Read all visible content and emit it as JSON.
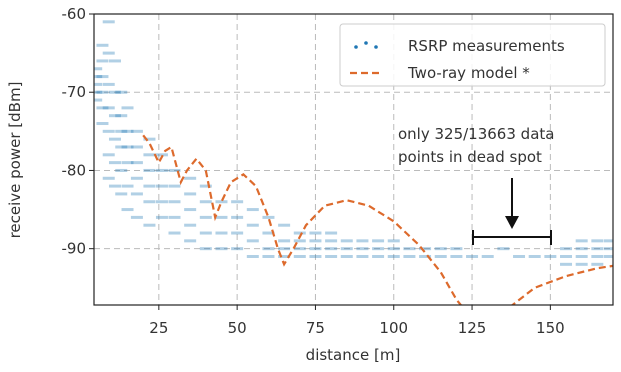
{
  "chart_data": {
    "type": "scatter",
    "xlabel": "distance [m]",
    "ylabel": "receive power [dBm]",
    "xlim": [
      4.3,
      170
    ],
    "ylim": [
      -97.2,
      -60
    ],
    "xticks": [
      25,
      50,
      75,
      100,
      125,
      150
    ],
    "yticks": [
      -60,
      -70,
      -80,
      -90
    ],
    "grid": true,
    "legend": "upper right",
    "annotation": [
      "only 325/13663 data",
      "points in dead spot"
    ],
    "series": [
      {
        "name": "RSRP measurements",
        "type": "scatter",
        "color": "#1f77b4",
        "x": [
          5,
          5,
          5,
          5,
          5,
          7,
          7,
          7,
          7,
          7,
          7,
          9,
          9,
          9,
          9,
          9,
          9,
          9,
          11,
          11,
          11,
          11,
          11,
          11,
          13,
          13,
          13,
          13,
          13,
          13,
          15,
          15,
          15,
          15,
          15,
          15,
          18,
          18,
          18,
          18,
          18,
          18,
          22,
          22,
          22,
          22,
          22,
          22,
          26,
          26,
          26,
          26,
          26,
          30,
          30,
          30,
          30,
          30,
          35,
          35,
          35,
          35,
          35,
          40,
          40,
          40,
          40,
          40,
          45,
          45,
          45,
          45,
          50,
          50,
          50,
          50,
          55,
          55,
          55,
          55,
          60,
          60,
          60,
          60,
          65,
          65,
          65,
          65,
          70,
          70,
          70,
          70,
          75,
          75,
          75,
          75,
          80,
          80,
          80,
          80,
          85,
          85,
          85,
          90,
          90,
          90,
          95,
          95,
          95,
          100,
          100,
          100,
          105,
          105,
          110,
          110,
          115,
          115,
          120,
          120,
          125,
          130,
          135,
          140,
          145,
          150,
          155,
          155,
          155,
          160,
          160,
          160,
          160,
          165,
          165,
          165,
          165,
          169,
          169,
          169
        ],
        "y": [
          -67,
          -68,
          -69,
          -70,
          -71,
          -64,
          -66,
          -68,
          -70,
          -72,
          -74,
          -61,
          -65,
          -69,
          -72,
          -75,
          -78,
          -81,
          -66,
          -70,
          -73,
          -76,
          -79,
          -82,
          -70,
          -73,
          -75,
          -77,
          -80,
          -83,
          -72,
          -75,
          -77,
          -79,
          -82,
          -85,
          -75,
          -77,
          -79,
          -81,
          -83,
          -86,
          -76,
          -78,
          -80,
          -82,
          -84,
          -87,
          -78,
          -80,
          -82,
          -84,
          -86,
          -80,
          -82,
          -84,
          -86,
          -88,
          -81,
          -83,
          -85,
          -87,
          -89,
          -82,
          -84,
          -86,
          -88,
          -90,
          -84,
          -86,
          -88,
          -90,
          -84,
          -86,
          -88,
          -90,
          -85,
          -87,
          -89,
          -91,
          -86,
          -88,
          -90,
          -91,
          -87,
          -89,
          -90,
          -91,
          -88,
          -89,
          -90,
          -91,
          -88,
          -89,
          -90,
          -91,
          -88,
          -89,
          -90,
          -91,
          -89,
          -90,
          -91,
          -89,
          -90,
          -91,
          -89,
          -90,
          -91,
          -89,
          -90,
          -91,
          -90,
          -91,
          -90,
          -91,
          -90,
          -91,
          -90,
          -91,
          -91,
          -91,
          -90,
          -91,
          -91,
          -91,
          -90,
          -91,
          -92,
          -89,
          -90,
          -91,
          -92,
          -89,
          -90,
          -91,
          -92,
          -89,
          -90,
          -91
        ]
      },
      {
        "name": "Two-ray model *",
        "type": "line",
        "color": "#dd6a2c",
        "x": [
          20,
          22,
          25,
          27,
          29,
          32,
          34,
          37,
          40,
          43,
          45,
          48,
          52,
          56,
          60,
          63,
          65,
          68,
          72,
          78,
          85,
          92,
          100,
          108,
          115,
          120,
          122,
          130,
          137,
          145,
          155,
          165,
          170
        ],
        "y": [
          -75.5,
          -76.5,
          -79,
          -77.5,
          -77,
          -81.5,
          -80,
          -78.5,
          -80,
          -86,
          -84,
          -81.5,
          -80.5,
          -82,
          -86,
          -90,
          -92,
          -90,
          -87,
          -84.5,
          -83.8,
          -84.5,
          -86.5,
          -89.5,
          -93,
          -96.5,
          -97.5,
          null,
          -97.5,
          -95,
          -93.5,
          -92.5,
          -92.2
        ]
      }
    ]
  }
}
